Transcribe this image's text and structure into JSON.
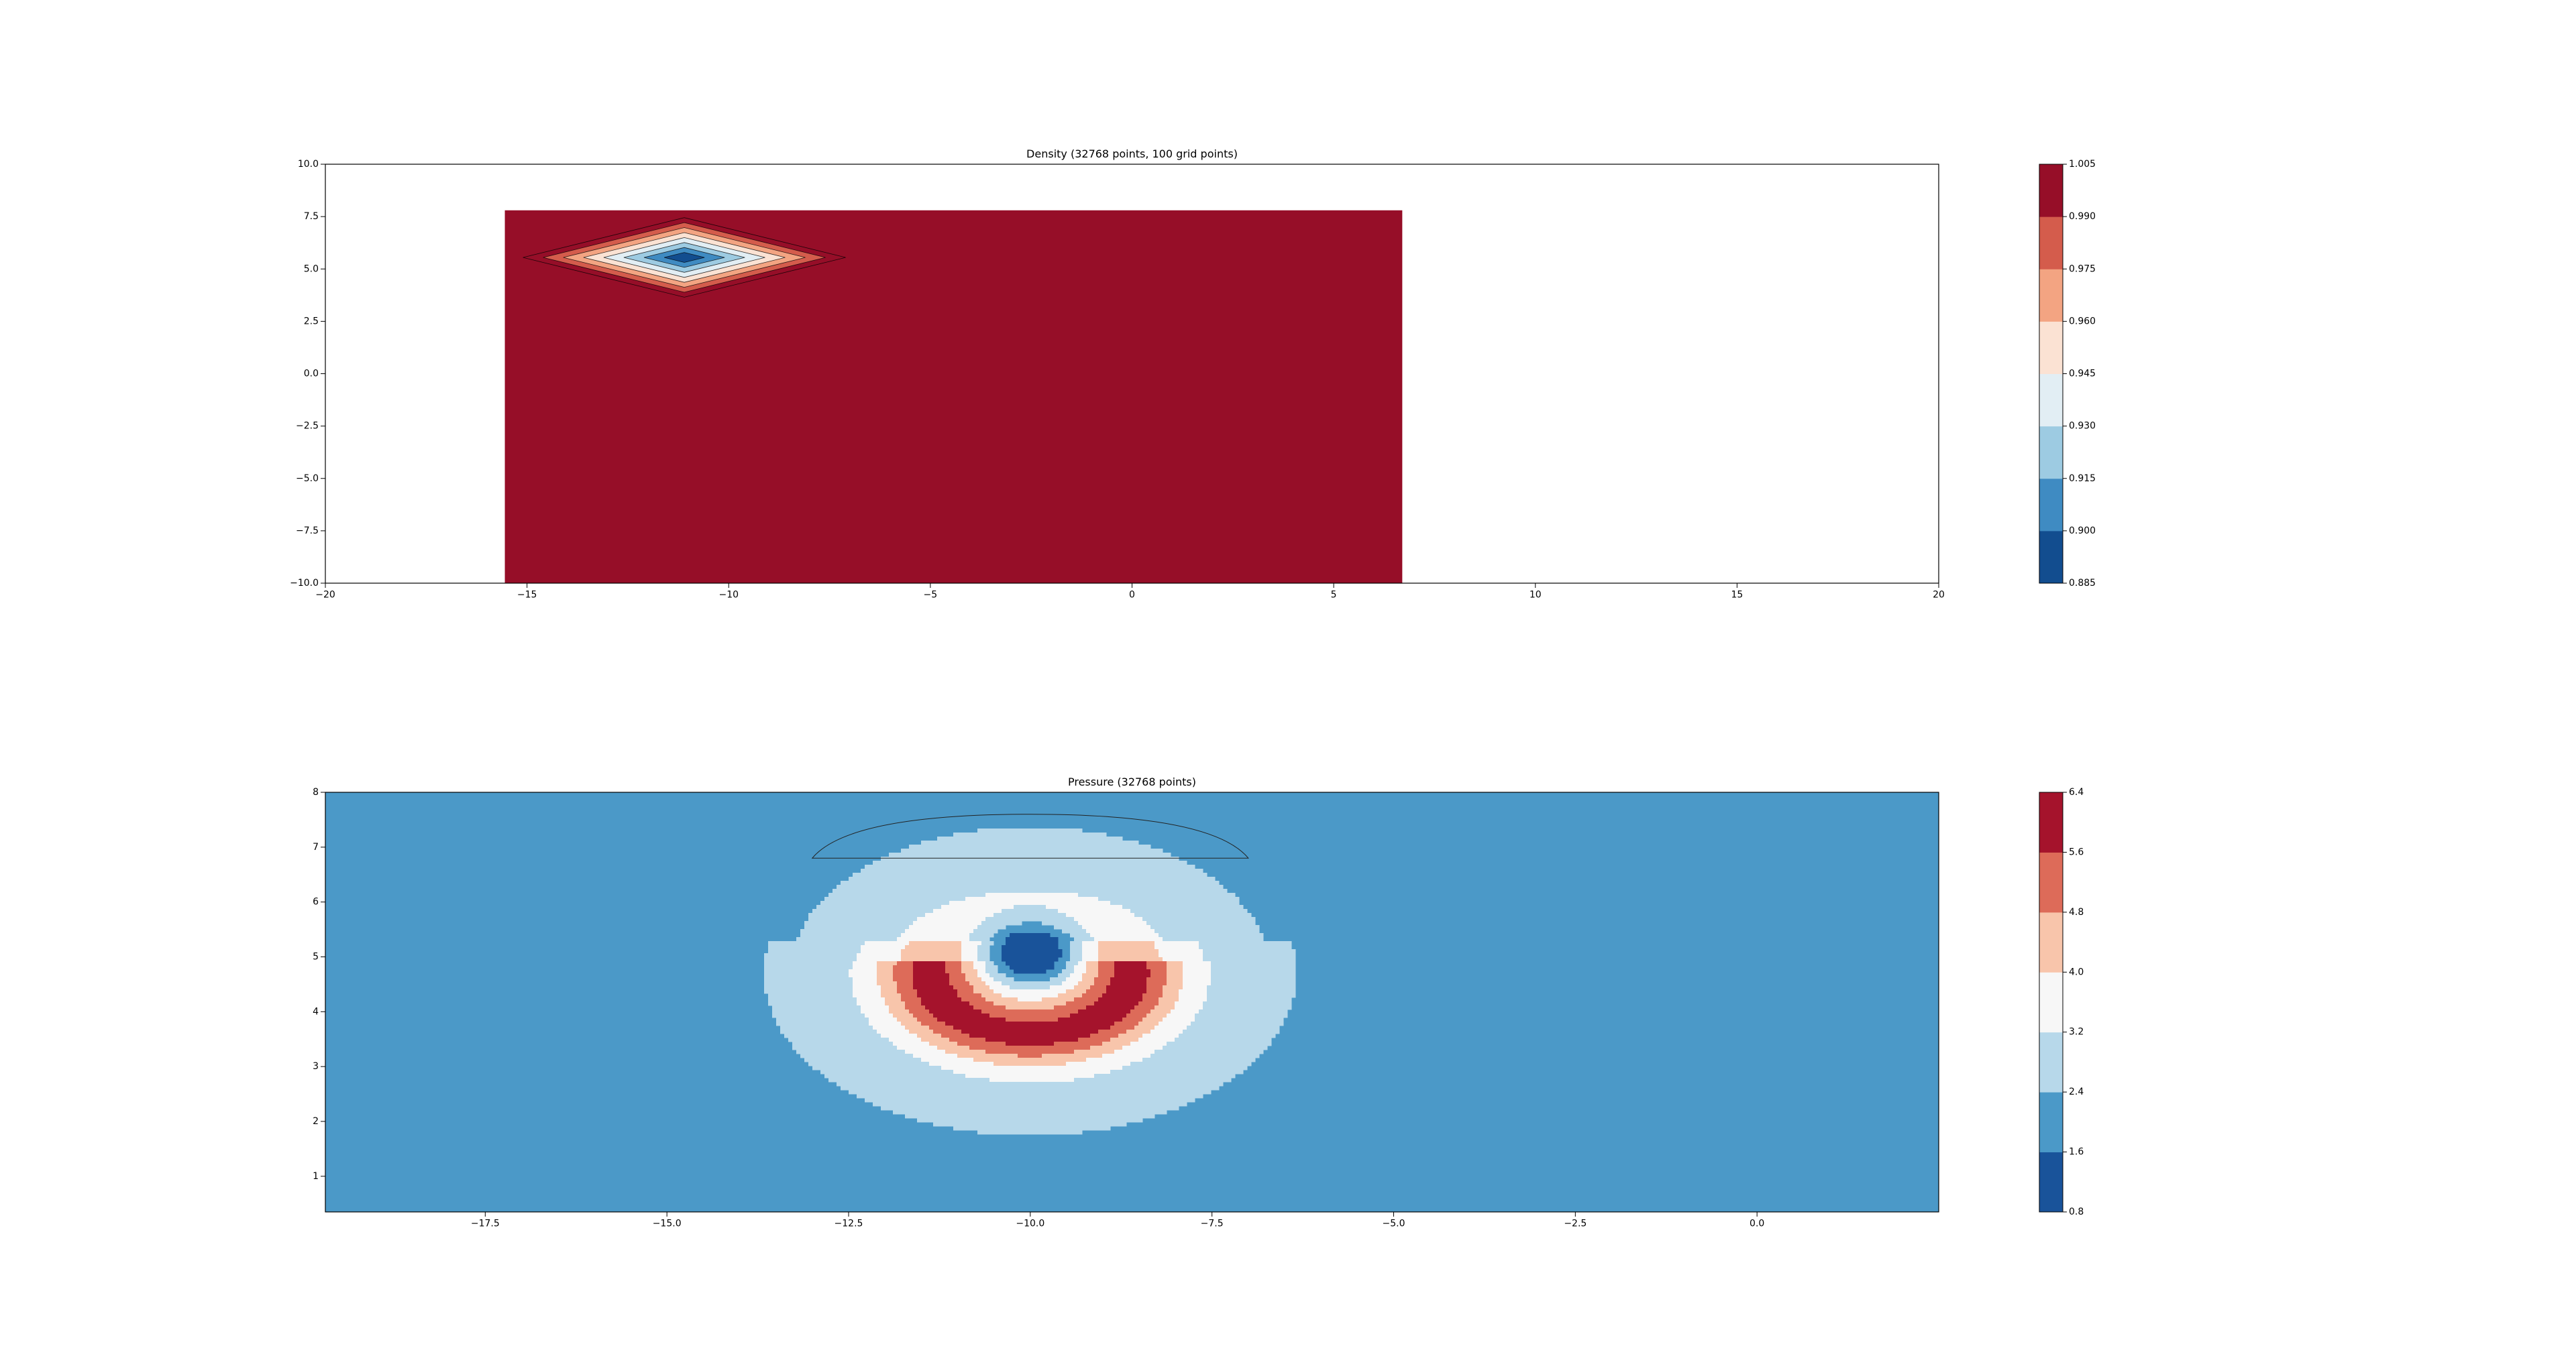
{
  "chart_data": [
    {
      "type": "contour",
      "title": "Density (32768 points, 100 grid points)",
      "xlabel": "",
      "ylabel": "",
      "xlim": [
        -20,
        20
      ],
      "ylim": [
        -10,
        10
      ],
      "xticks": [
        -20,
        -15,
        -10,
        -5,
        0,
        5,
        10,
        15,
        20
      ],
      "xtick_labels": [
        "−20",
        "−15",
        "−10",
        "−5",
        "0",
        "5",
        "10",
        "15",
        "20"
      ],
      "yticks": [
        -10,
        -7.5,
        -5,
        -2.5,
        0,
        2.5,
        5,
        7.5,
        10
      ],
      "ytick_labels": [
        "−10.0",
        "−7.5",
        "−5.0",
        "−2.5",
        "0.0",
        "2.5",
        "5.0",
        "7.5",
        "10.0"
      ],
      "domain": {
        "x": [
          -15.55,
          6.7
        ],
        "y": [
          -10,
          7.8
        ]
      },
      "feature": {
        "center": [
          -11.1,
          5.55
        ],
        "half_width": 4.0,
        "half_height": 1.9,
        "min_value": 0.885
      },
      "levels": [
        0.885,
        0.9,
        0.915,
        0.93,
        0.945,
        0.96,
        0.975,
        0.99,
        1.005
      ],
      "colorbar": {
        "tick_labels": [
          "1.005",
          "0.990",
          "0.975",
          "0.960",
          "0.945",
          "0.930",
          "0.915",
          "0.900",
          "0.885"
        ],
        "colors": [
          "#124d8f",
          "#3f8bc2",
          "#9dcbe2",
          "#e2eef4",
          "#fbe2d3",
          "#f3a482",
          "#d45c4c",
          "#960e28"
        ]
      },
      "grid": false
    },
    {
      "type": "contour",
      "title": "Pressure (32768 points)",
      "xlabel": "",
      "ylabel": "",
      "xlim": [
        -19.7,
        2.5
      ],
      "ylim": [
        0.35,
        8.0
      ],
      "xticks": [
        -17.5,
        -15.0,
        -12.5,
        -10.0,
        -7.5,
        -5.0,
        -2.5,
        0.0
      ],
      "xtick_labels": [
        "−17.5",
        "−15.0",
        "−12.5",
        "−10.0",
        "−7.5",
        "−5.0",
        "−2.5",
        "0.0"
      ],
      "yticks": [
        1,
        2,
        3,
        4,
        5,
        6,
        7,
        8
      ],
      "ytick_labels": [
        "1",
        "2",
        "3",
        "4",
        "5",
        "6",
        "7",
        "8"
      ],
      "levels": [
        0.8,
        1.6,
        2.4,
        3.2,
        4.0,
        4.8,
        5.6,
        6.4
      ],
      "colorbar": {
        "tick_labels": [
          "6.4",
          "5.6",
          "4.8",
          "4.0",
          "3.2",
          "2.4",
          "1.6",
          "0.8"
        ],
        "colors": [
          "#19539a",
          "#4b99c8",
          "#b7d8ea",
          "#f7f7f7",
          "#f8c5ab",
          "#dd6b59",
          "#a5132c"
        ]
      },
      "grid": false
    }
  ]
}
